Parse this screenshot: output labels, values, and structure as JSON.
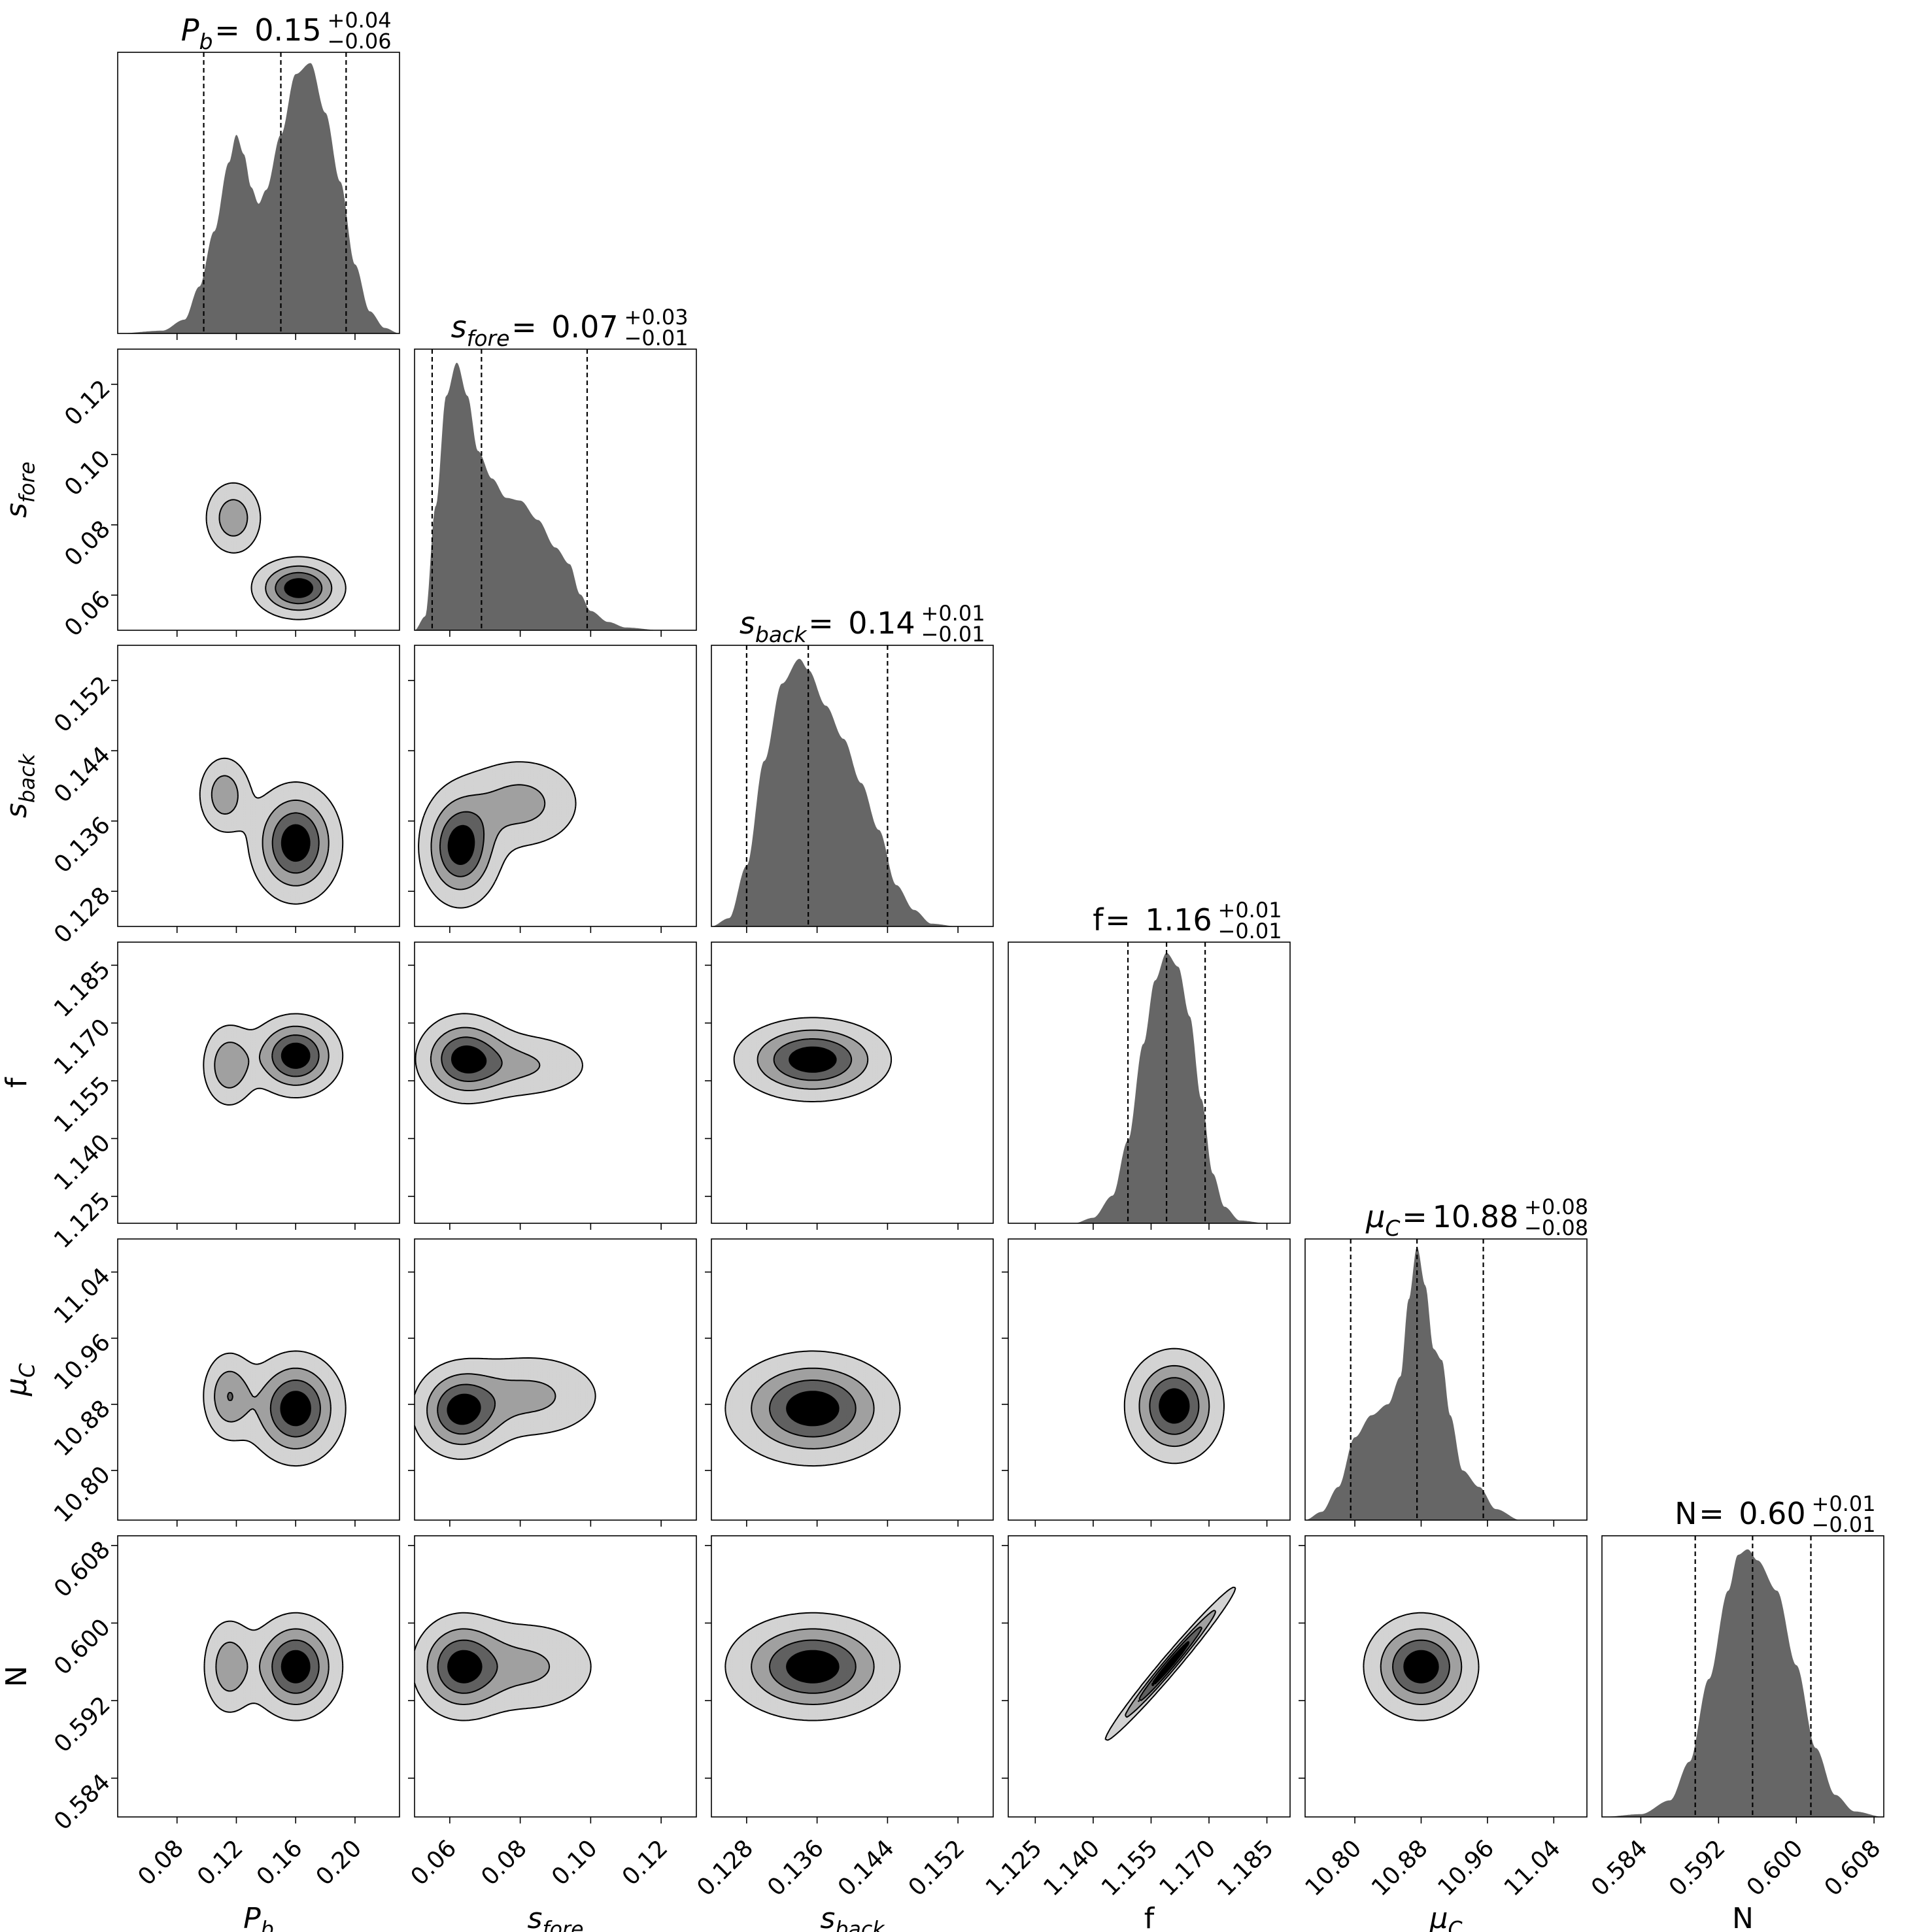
{
  "chart_data": {
    "type": "corner",
    "description_note": "",
    "parameters": [
      {
        "key": "Pb",
        "label_base": "P",
        "label_sub": "b",
        "italic": true,
        "range": [
          0.04,
          0.23
        ],
        "ticks": [
          0.08,
          0.12,
          0.16,
          0.2
        ],
        "tick_labels": [
          "0.08",
          "0.12",
          "0.16",
          "0.20"
        ],
        "title_value": "0.15",
        "title_plus": "+0.04",
        "title_minus": "−0.06",
        "quantiles": [
          0.098,
          0.15,
          0.194
        ],
        "marginal": [
          [
            0.04,
            0.0
          ],
          [
            0.07,
            0.01
          ],
          [
            0.085,
            0.05
          ],
          [
            0.095,
            0.17
          ],
          [
            0.105,
            0.37
          ],
          [
            0.115,
            0.62
          ],
          [
            0.12,
            0.72
          ],
          [
            0.125,
            0.65
          ],
          [
            0.13,
            0.53
          ],
          [
            0.135,
            0.47
          ],
          [
            0.14,
            0.52
          ],
          [
            0.15,
            0.72
          ],
          [
            0.16,
            0.94
          ],
          [
            0.17,
            0.98
          ],
          [
            0.18,
            0.8
          ],
          [
            0.19,
            0.55
          ],
          [
            0.2,
            0.25
          ],
          [
            0.21,
            0.08
          ],
          [
            0.22,
            0.02
          ],
          [
            0.23,
            0.0
          ]
        ]
      },
      {
        "key": "sfore",
        "label_base": "s",
        "label_sub": "fore",
        "italic": true,
        "range": [
          0.05,
          0.13
        ],
        "ticks": [
          0.06,
          0.08,
          0.1,
          0.12
        ],
        "tick_labels": [
          "0.06",
          "0.08",
          "0.10",
          "0.12"
        ],
        "title_value": "0.07",
        "title_plus": "+0.03",
        "title_minus": "−0.01",
        "quantiles": [
          0.055,
          0.069,
          0.099
        ],
        "marginal": [
          [
            0.05,
            0.0
          ],
          [
            0.053,
            0.05
          ],
          [
            0.056,
            0.45
          ],
          [
            0.059,
            0.85
          ],
          [
            0.062,
            0.97
          ],
          [
            0.065,
            0.85
          ],
          [
            0.068,
            0.65
          ],
          [
            0.072,
            0.55
          ],
          [
            0.076,
            0.48
          ],
          [
            0.08,
            0.47
          ],
          [
            0.085,
            0.4
          ],
          [
            0.09,
            0.3
          ],
          [
            0.094,
            0.24
          ],
          [
            0.097,
            0.13
          ],
          [
            0.1,
            0.07
          ],
          [
            0.105,
            0.03
          ],
          [
            0.11,
            0.01
          ],
          [
            0.12,
            0.0
          ],
          [
            0.13,
            0.0
          ]
        ]
      },
      {
        "key": "sback",
        "label_base": "s",
        "label_sub": "back",
        "italic": true,
        "range": [
          0.124,
          0.156
        ],
        "ticks": [
          0.128,
          0.136,
          0.144,
          0.152
        ],
        "tick_labels": [
          "0.128",
          "0.136",
          "0.144",
          "0.152"
        ],
        "title_value": "0.14",
        "title_plus": "+0.01",
        "title_minus": "−0.01",
        "quantiles": [
          0.128,
          0.135,
          0.144
        ],
        "marginal": [
          [
            0.124,
            0.0
          ],
          [
            0.126,
            0.03
          ],
          [
            0.128,
            0.22
          ],
          [
            0.13,
            0.6
          ],
          [
            0.132,
            0.88
          ],
          [
            0.134,
            0.97
          ],
          [
            0.135,
            0.93
          ],
          [
            0.137,
            0.8
          ],
          [
            0.139,
            0.68
          ],
          [
            0.141,
            0.52
          ],
          [
            0.143,
            0.35
          ],
          [
            0.145,
            0.15
          ],
          [
            0.147,
            0.06
          ],
          [
            0.149,
            0.01
          ],
          [
            0.152,
            0.0
          ],
          [
            0.156,
            0.0
          ]
        ]
      },
      {
        "key": "f",
        "label_base": "f",
        "label_sub": "",
        "italic": false,
        "range": [
          1.118,
          1.191
        ],
        "ticks": [
          1.125,
          1.14,
          1.155,
          1.17,
          1.185
        ],
        "tick_labels": [
          "1.125",
          "1.140",
          "1.155",
          "1.170",
          "1.185"
        ],
        "title_value": "1.16",
        "title_plus": "+0.01",
        "title_minus": "−0.01",
        "quantiles": [
          1.149,
          1.159,
          1.169
        ],
        "marginal": [
          [
            1.118,
            0.0
          ],
          [
            1.135,
            0.0
          ],
          [
            1.14,
            0.02
          ],
          [
            1.145,
            0.1
          ],
          [
            1.149,
            0.3
          ],
          [
            1.153,
            0.65
          ],
          [
            1.156,
            0.88
          ],
          [
            1.159,
            0.98
          ],
          [
            1.162,
            0.93
          ],
          [
            1.165,
            0.75
          ],
          [
            1.168,
            0.45
          ],
          [
            1.171,
            0.18
          ],
          [
            1.174,
            0.06
          ],
          [
            1.178,
            0.01
          ],
          [
            1.185,
            0.0
          ],
          [
            1.191,
            0.0
          ]
        ]
      },
      {
        "key": "muC",
        "label_base": "μ",
        "label_sub": "C",
        "italic": true,
        "range": [
          10.74,
          11.08
        ],
        "ticks": [
          10.8,
          10.88,
          10.96,
          11.04
        ],
        "tick_labels": [
          "10.80",
          "10.88",
          "10.96",
          "11.04"
        ],
        "title_value": "10.88",
        "title_plus": "+0.08",
        "title_minus": "−0.08",
        "quantiles": [
          10.795,
          10.875,
          10.955
        ],
        "marginal": [
          [
            10.74,
            0.0
          ],
          [
            10.76,
            0.03
          ],
          [
            10.78,
            0.12
          ],
          [
            10.8,
            0.3
          ],
          [
            10.82,
            0.38
          ],
          [
            10.84,
            0.42
          ],
          [
            10.855,
            0.52
          ],
          [
            10.865,
            0.8
          ],
          [
            10.875,
            0.99
          ],
          [
            10.885,
            0.85
          ],
          [
            10.895,
            0.62
          ],
          [
            10.905,
            0.58
          ],
          [
            10.915,
            0.38
          ],
          [
            10.93,
            0.18
          ],
          [
            10.95,
            0.12
          ],
          [
            10.97,
            0.04
          ],
          [
            11.0,
            0.0
          ],
          [
            11.08,
            0.0
          ]
        ]
      },
      {
        "key": "N",
        "label_base": "N",
        "label_sub": "",
        "italic": false,
        "range": [
          0.58,
          0.609
        ],
        "ticks": [
          0.584,
          0.592,
          0.6,
          0.608
        ],
        "tick_labels": [
          "0.584",
          "0.592",
          "0.600",
          "0.608"
        ],
        "title_value": "0.60",
        "title_plus": "+0.01",
        "title_minus": "−0.01",
        "quantiles": [
          0.5896,
          0.5955,
          0.6015
        ],
        "marginal": [
          [
            0.58,
            0.0
          ],
          [
            0.584,
            0.01
          ],
          [
            0.587,
            0.06
          ],
          [
            0.589,
            0.2
          ],
          [
            0.591,
            0.5
          ],
          [
            0.593,
            0.82
          ],
          [
            0.594,
            0.95
          ],
          [
            0.595,
            0.97
          ],
          [
            0.596,
            0.93
          ],
          [
            0.598,
            0.82
          ],
          [
            0.6,
            0.55
          ],
          [
            0.602,
            0.25
          ],
          [
            0.604,
            0.08
          ],
          [
            0.606,
            0.02
          ],
          [
            0.609,
            0.0
          ]
        ]
      }
    ],
    "joint": [
      {
        "row": 1,
        "col": 0,
        "peaks": [
          {
            "x": 0.162,
            "y": 0.062,
            "sx": 0.016,
            "sy": 0.0045,
            "w": 1.0
          },
          {
            "x": 0.118,
            "y": 0.082,
            "sx": 0.011,
            "sy": 0.006,
            "w": 0.55
          }
        ]
      },
      {
        "row": 2,
        "col": 0,
        "peaks": [
          {
            "x": 0.16,
            "y": 0.1335,
            "sx": 0.016,
            "sy": 0.0035,
            "w": 1.0
          },
          {
            "x": 0.112,
            "y": 0.139,
            "sx": 0.01,
            "sy": 0.0025,
            "w": 0.55
          }
        ]
      },
      {
        "row": 2,
        "col": 1,
        "peaks": [
          {
            "x": 0.063,
            "y": 0.133,
            "sx": 0.006,
            "sy": 0.0035,
            "w": 1.0
          },
          {
            "x": 0.08,
            "y": 0.138,
            "sx": 0.01,
            "sy": 0.003,
            "w": 0.5
          }
        ]
      },
      {
        "row": 3,
        "col": 0,
        "peaks": [
          {
            "x": 0.16,
            "y": 1.1615,
            "sx": 0.016,
            "sy": 0.0055,
            "w": 1.0
          },
          {
            "x": 0.115,
            "y": 1.159,
            "sx": 0.01,
            "sy": 0.006,
            "w": 0.6
          }
        ]
      },
      {
        "row": 3,
        "col": 1,
        "peaks": [
          {
            "x": 0.064,
            "y": 1.161,
            "sx": 0.007,
            "sy": 0.006,
            "w": 1.0
          },
          {
            "x": 0.08,
            "y": 1.159,
            "sx": 0.012,
            "sy": 0.005,
            "w": 0.5
          }
        ]
      },
      {
        "row": 3,
        "col": 2,
        "peaks": [
          {
            "x": 0.1355,
            "y": 1.1605,
            "sx": 0.0045,
            "sy": 0.0055,
            "w": 1.0
          }
        ]
      },
      {
        "row": 4,
        "col": 0,
        "peaks": [
          {
            "x": 0.16,
            "y": 10.875,
            "sx": 0.017,
            "sy": 0.035,
            "w": 1.0
          },
          {
            "x": 0.115,
            "y": 10.89,
            "sx": 0.01,
            "sy": 0.03,
            "w": 0.6
          }
        ]
      },
      {
        "row": 4,
        "col": 1,
        "peaks": [
          {
            "x": 0.063,
            "y": 10.872,
            "sx": 0.007,
            "sy": 0.03,
            "w": 1.0
          },
          {
            "x": 0.083,
            "y": 10.89,
            "sx": 0.012,
            "sy": 0.03,
            "w": 0.5
          }
        ]
      },
      {
        "row": 4,
        "col": 2,
        "peaks": [
          {
            "x": 0.1355,
            "y": 10.875,
            "sx": 0.005,
            "sy": 0.035,
            "w": 1.0
          }
        ]
      },
      {
        "row": 4,
        "col": 3,
        "peaks": [
          {
            "x": 1.161,
            "y": 10.878,
            "sx": 0.0065,
            "sy": 0.035,
            "w": 1.0
          }
        ]
      },
      {
        "row": 5,
        "col": 0,
        "peaks": [
          {
            "x": 0.16,
            "y": 0.5955,
            "sx": 0.016,
            "sy": 0.0028,
            "w": 1.0
          },
          {
            "x": 0.115,
            "y": 0.5955,
            "sx": 0.01,
            "sy": 0.0028,
            "w": 0.55
          }
        ]
      },
      {
        "row": 5,
        "col": 1,
        "peaks": [
          {
            "x": 0.063,
            "y": 0.5955,
            "sx": 0.007,
            "sy": 0.0028,
            "w": 1.0
          },
          {
            "x": 0.082,
            "y": 0.5955,
            "sx": 0.012,
            "sy": 0.0028,
            "w": 0.5
          }
        ]
      },
      {
        "row": 5,
        "col": 2,
        "peaks": [
          {
            "x": 0.1355,
            "y": 0.5955,
            "sx": 0.005,
            "sy": 0.0028,
            "w": 1.0
          }
        ]
      },
      {
        "row": 5,
        "col": 3,
        "peaks": [
          {
            "x": 1.16,
            "y": 0.5958,
            "sx": 0.0085,
            "sy": 0.004,
            "w": 1.0,
            "corr": 0.985
          }
        ]
      },
      {
        "row": 5,
        "col": 4,
        "peaks": [
          {
            "x": 10.88,
            "y": 0.5955,
            "sx": 0.035,
            "sy": 0.0028,
            "w": 1.0
          }
        ]
      }
    ],
    "colors": {
      "filled": "#666666",
      "contour_fills": [
        "#d3d3d3",
        "#a0a0a0",
        "#606060",
        "#000000"
      ],
      "axis": "#000000"
    },
    "grid": false
  }
}
